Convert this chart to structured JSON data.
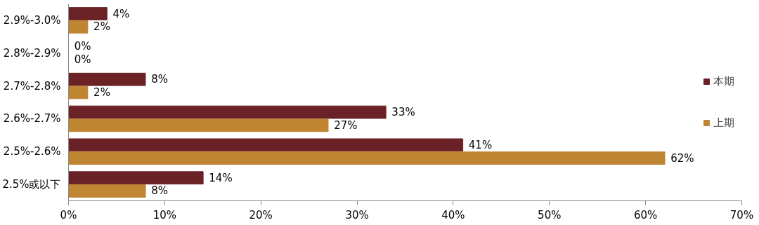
{
  "chart_data": {
    "type": "bar",
    "orientation": "horizontal",
    "categories": [
      "2.9%-3.0%",
      "2.8%-2.9%",
      "2.7%-2.8%",
      "2.6%-2.7%",
      "2.5%-2.6%",
      "2.5%或以下"
    ],
    "series": [
      {
        "name": "本期",
        "color": "#6b2226",
        "values": [
          4,
          0,
          8,
          33,
          41,
          14
        ],
        "value_labels": [
          "4%",
          "0%",
          "8%",
          "33%",
          "41%",
          "14%"
        ]
      },
      {
        "name": "上期",
        "color": "#c08532",
        "values": [
          2,
          0,
          2,
          27,
          62,
          8
        ],
        "value_labels": [
          "2%",
          "0%",
          "2%",
          "27%",
          "62%",
          "8%"
        ]
      }
    ],
    "xlim": [
      0,
      70
    ],
    "xticks": [
      {
        "value": 0,
        "label": "0%"
      },
      {
        "value": 10,
        "label": "10%"
      },
      {
        "value": 20,
        "label": "20%"
      },
      {
        "value": 30,
        "label": "30%"
      },
      {
        "value": 40,
        "label": "40%"
      },
      {
        "value": 50,
        "label": "50%"
      },
      {
        "value": 60,
        "label": "60%"
      },
      {
        "value": 70,
        "label": "70%"
      }
    ],
    "legend": "right",
    "grid": false
  }
}
